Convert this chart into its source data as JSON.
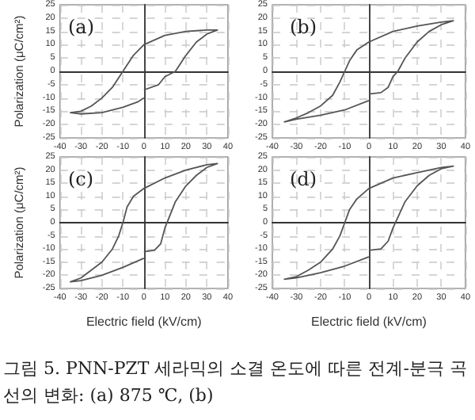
{
  "chart_data": [
    {
      "type": "line",
      "title": "(a)",
      "ylabel": "Polarization (μC/cm²)",
      "xlim": [
        -40,
        40
      ],
      "xticks": [
        -40,
        -30,
        -20,
        -10,
        0,
        10,
        20,
        30,
        40
      ],
      "ylim": [
        -25,
        25
      ],
      "yticks": [
        -25,
        -20,
        -15,
        -10,
        -5,
        0,
        5,
        10,
        15,
        20,
        25
      ],
      "grid": true,
      "marker": "none",
      "line_style": "solid",
      "series": [
        {
          "color": "#555555",
          "x": [
            0,
            7,
            10,
            15,
            20,
            25,
            30,
            35,
            30,
            20,
            10,
            0,
            -5,
            -10,
            -15,
            -20,
            -25,
            -30,
            -35,
            -30,
            -20,
            -10,
            -3,
            0
          ],
          "values": [
            -7,
            -5,
            -2,
            0,
            6,
            11,
            14,
            15.5,
            15.5,
            15,
            13.5,
            10,
            6,
            0,
            -6,
            -10,
            -13,
            -15,
            -15.5,
            -16,
            -15.5,
            -13.5,
            -11.5,
            -10
          ]
        }
      ]
    },
    {
      "type": "line",
      "title": "(b)",
      "xlim": [
        -40,
        40
      ],
      "xticks": [
        -40,
        -30,
        -20,
        -10,
        0,
        10,
        20,
        30,
        40
      ],
      "ylim": [
        -25,
        25
      ],
      "yticks": [
        -25,
        -20,
        -15,
        -10,
        -5,
        0,
        5,
        10,
        15,
        20,
        25
      ],
      "grid": true,
      "marker": "none",
      "line_style": "solid",
      "series": [
        {
          "color": "#555555",
          "x": [
            0,
            5,
            8,
            10,
            12,
            15,
            20,
            25,
            30,
            35,
            30,
            20,
            10,
            0,
            -5,
            -8,
            -10,
            -12,
            -15,
            -20,
            -25,
            -30,
            -35,
            -30,
            -20,
            -10,
            0
          ],
          "values": [
            -8.5,
            -8,
            -6,
            -2,
            0,
            5,
            11,
            15,
            17.5,
            19,
            18.5,
            17,
            15,
            11,
            8,
            4,
            0,
            -4,
            -9,
            -13,
            -15.5,
            -17.5,
            -19,
            -18,
            -16.5,
            -14.5,
            -11
          ]
        }
      ]
    },
    {
      "type": "line",
      "title": "(c)",
      "xlabel": "Electric field (kV/cm)",
      "ylabel": "Polarization (μC/cm²)",
      "xlim": [
        -40,
        40
      ],
      "xticks": [
        -40,
        -30,
        -20,
        -10,
        0,
        10,
        20,
        30,
        40
      ],
      "ylim": [
        -25,
        25
      ],
      "yticks": [
        -25,
        -20,
        -15,
        -10,
        -5,
        0,
        5,
        10,
        15,
        20,
        25
      ],
      "grid": true,
      "marker": "none",
      "line_style": "solid",
      "series": [
        {
          "color": "#555555",
          "x": [
            0,
            5,
            8,
            10,
            12,
            15,
            20,
            25,
            30,
            35,
            30,
            20,
            10,
            0,
            -5,
            -8,
            -10,
            -12,
            -15,
            -20,
            -25,
            -30,
            -35,
            -30,
            -20,
            -10,
            0
          ],
          "values": [
            -11,
            -10.5,
            -8,
            -2,
            2,
            8,
            14,
            18,
            21,
            22.5,
            22,
            20,
            17,
            13,
            10,
            6,
            0,
            -5,
            -10,
            -15,
            -18,
            -21,
            -22.5,
            -22,
            -20,
            -17,
            -13.5
          ]
        }
      ]
    },
    {
      "type": "line",
      "title": "(d)",
      "xlabel": "Electric field (kV/cm)",
      "xlim": [
        -40,
        40
      ],
      "xticks": [
        -40,
        -30,
        -20,
        -10,
        0,
        10,
        20,
        30,
        40
      ],
      "ylim": [
        -25,
        25
      ],
      "yticks": [
        -25,
        -20,
        -15,
        -10,
        -5,
        0,
        5,
        10,
        15,
        20,
        25
      ],
      "grid": true,
      "marker": "none",
      "line_style": "solid",
      "annotations": [
        "그림 5. PNN-PZT 세라믹의 소결 온도에 따른 전계-분극 곡선의 변화: (a) 875 ℃, (b)"
      ],
      "series": [
        {
          "color": "#555555",
          "x": [
            0,
            5,
            8,
            10,
            12,
            15,
            20,
            25,
            30,
            35,
            30,
            20,
            10,
            0,
            -5,
            -8,
            -10,
            -12,
            -15,
            -20,
            -25,
            -30,
            -35,
            -30,
            -20,
            -10,
            0
          ],
          "values": [
            -10.5,
            -10,
            -7,
            -2,
            2,
            8,
            14,
            18,
            20.5,
            21.5,
            21,
            19,
            17,
            13,
            9,
            5,
            0,
            -5,
            -10,
            -15,
            -18,
            -20.5,
            -21.5,
            -21,
            -19,
            -16.5,
            -13
          ]
        }
      ]
    }
  ]
}
